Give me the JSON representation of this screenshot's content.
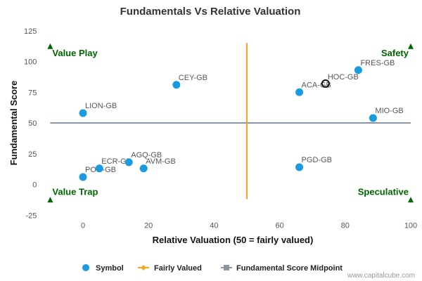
{
  "chart_data": {
    "type": "scatter",
    "title": "Fundamentals Vs Relative Valuation",
    "xlabel": "Relative Valuation (50 = fairly valued)",
    "ylabel": "Fundamental Score",
    "xlim": [
      -10,
      100
    ],
    "ylim": [
      -25,
      125
    ],
    "x_ticks": [
      0,
      20,
      40,
      60,
      80,
      100
    ],
    "y_ticks": [
      -25,
      0,
      25,
      50,
      75,
      100,
      125
    ],
    "grid": false,
    "legend_position": "bottom",
    "series": [
      {
        "name": "Symbol",
        "color": "#1a9be0",
        "points": [
          {
            "label": "LION-GB",
            "x": 0,
            "y": 58
          },
          {
            "label": "POG-GB",
            "x": 0,
            "y": 6
          },
          {
            "label": "ECR-GB",
            "x": 5,
            "y": 13
          },
          {
            "label": "AGQ-GB",
            "x": 14,
            "y": 18
          },
          {
            "label": "AVM-GB",
            "x": 18.5,
            "y": 13
          },
          {
            "label": "CEY-GB",
            "x": 28.5,
            "y": 81
          },
          {
            "label": "ACA-GB",
            "x": 66,
            "y": 75
          },
          {
            "label": "PGD-GB",
            "x": 66,
            "y": 14
          },
          {
            "label": "FRES-GB",
            "x": 84,
            "y": 93
          },
          {
            "label": "MIO-GB",
            "x": 88.5,
            "y": 54
          }
        ]
      },
      {
        "name": "Fairly Valued",
        "color": "#f5a623",
        "x": [
          50,
          50
        ],
        "y": [
          -12,
          115
        ]
      },
      {
        "name": "Fundamental Score Midpoint",
        "color": "#8a96a3",
        "x": [
          -10,
          100
        ],
        "y": [
          50,
          50
        ]
      }
    ],
    "highlight": {
      "label": "HOC-GB",
      "x": 74,
      "y": 82
    },
    "quadrants": {
      "top_left": "Value Play",
      "top_right": "Safety",
      "bottom_left": "Value Trap",
      "bottom_right": "Speculative"
    },
    "credit": "www.capitalcube.com"
  }
}
